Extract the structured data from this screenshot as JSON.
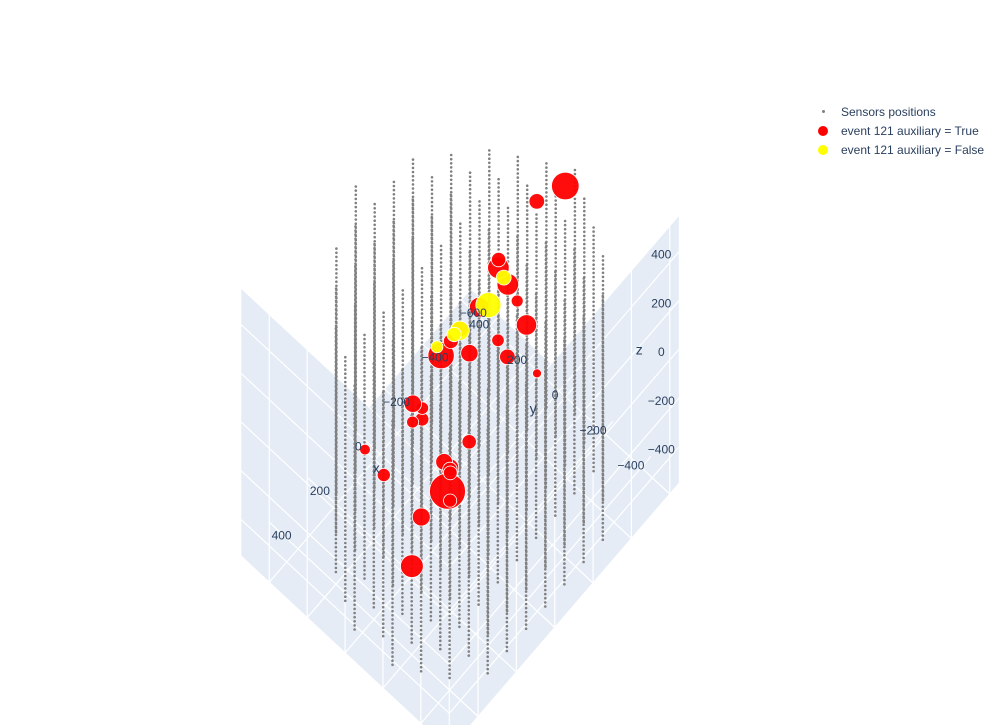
{
  "chart_data": {
    "type": "scatter3d",
    "axes": {
      "x": {
        "title": "x",
        "ticks": [
          "−600",
          "−400",
          "−200",
          "0",
          "200",
          "400"
        ],
        "tick_values": [
          -600,
          -400,
          -200,
          0,
          200,
          400
        ],
        "range": [
          -650,
          550
        ]
      },
      "y": {
        "title": "y",
        "ticks": [
          "−400",
          "−200",
          "0",
          "200",
          "400"
        ],
        "tick_values": [
          -400,
          -200,
          0,
          200,
          400
        ],
        "range": [
          -550,
          550
        ]
      },
      "z": {
        "title": "z",
        "ticks": [
          "−400",
          "−200",
          "0",
          "200",
          "400"
        ],
        "tick_values": [
          -400,
          -200,
          0,
          200,
          400
        ],
        "range": [
          -550,
          550
        ]
      }
    },
    "background_color": "#e5ecf6",
    "grid": true,
    "legend_placement": "top-right",
    "series": [
      {
        "name": "Sensors positions",
        "color": "#808080",
        "marker": "small-dot",
        "strings_xy": [
          [
            -300,
            -500
          ],
          [
            -200,
            -500
          ],
          [
            -100,
            -500
          ],
          [
            0,
            -500
          ],
          [
            100,
            -500
          ],
          [
            200,
            -500
          ],
          [
            300,
            -500
          ],
          [
            -400,
            -400
          ],
          [
            -300,
            -400
          ],
          [
            -200,
            -400
          ],
          [
            -100,
            -400
          ],
          [
            0,
            -400
          ],
          [
            100,
            -400
          ],
          [
            200,
            -400
          ],
          [
            300,
            -400
          ],
          [
            400,
            -400
          ],
          [
            -450,
            -300
          ],
          [
            -350,
            -300
          ],
          [
            -250,
            -300
          ],
          [
            -150,
            -300
          ],
          [
            -50,
            -300
          ],
          [
            50,
            -300
          ],
          [
            150,
            -300
          ],
          [
            250,
            -300
          ],
          [
            350,
            -300
          ],
          [
            450,
            -300
          ],
          [
            -500,
            -200
          ],
          [
            -400,
            -200
          ],
          [
            -300,
            -200
          ],
          [
            -200,
            -200
          ],
          [
            -100,
            -200
          ],
          [
            0,
            -200
          ],
          [
            100,
            -200
          ],
          [
            200,
            -200
          ],
          [
            300,
            -200
          ],
          [
            400,
            -200
          ],
          [
            500,
            -200
          ],
          [
            -550,
            -100
          ],
          [
            -450,
            -100
          ],
          [
            -350,
            -100
          ],
          [
            -250,
            -100
          ],
          [
            -150,
            -100
          ],
          [
            -50,
            -100
          ],
          [
            50,
            -100
          ],
          [
            150,
            -100
          ],
          [
            250,
            -100
          ],
          [
            350,
            -100
          ],
          [
            450,
            -100
          ],
          [
            -500,
            0
          ],
          [
            -400,
            0
          ],
          [
            -300,
            0
          ],
          [
            -200,
            0
          ],
          [
            -100,
            0
          ],
          [
            0,
            0
          ],
          [
            100,
            0
          ],
          [
            200,
            0
          ],
          [
            300,
            0
          ],
          [
            400,
            0
          ],
          [
            500,
            0
          ],
          [
            -450,
            100
          ],
          [
            -350,
            100
          ],
          [
            -250,
            100
          ],
          [
            -150,
            100
          ],
          [
            -50,
            100
          ],
          [
            50,
            100
          ],
          [
            150,
            100
          ],
          [
            250,
            100
          ],
          [
            350,
            100
          ],
          [
            450,
            100
          ],
          [
            -400,
            200
          ],
          [
            -300,
            200
          ],
          [
            -200,
            200
          ],
          [
            -100,
            200
          ],
          [
            0,
            200
          ],
          [
            100,
            200
          ],
          [
            200,
            200
          ],
          [
            300,
            200
          ],
          [
            400,
            200
          ],
          [
            -300,
            300
          ],
          [
            -200,
            300
          ],
          [
            -100,
            300
          ],
          [
            0,
            300
          ],
          [
            100,
            300
          ],
          [
            200,
            300
          ],
          [
            300,
            300
          ],
          [
            -200,
            400
          ],
          [
            -100,
            400
          ],
          [
            0,
            400
          ],
          [
            100,
            400
          ],
          [
            200,
            400
          ],
          [
            0,
            500
          ]
        ],
        "z_range": [
          -500,
          500
        ],
        "sensors_per_string": 60
      },
      {
        "name": "event 121 auxiliary = True",
        "color": "#ff0000",
        "points": [
          {
            "x": 480,
            "y": -470,
            "z": 390,
            "charge": 5.0
          },
          {
            "x": 380,
            "y": -380,
            "z": 330,
            "charge": 2.0
          },
          {
            "x": 330,
            "y": -300,
            "z": 250,
            "charge": 1.8
          },
          {
            "x": 250,
            "y": -250,
            "z": 110,
            "charge": 1.4
          },
          {
            "x": 350,
            "y": -200,
            "z": -30,
            "charge": 2.0
          },
          {
            "x": 200,
            "y": -200,
            "z": -100,
            "charge": 1.2
          },
          {
            "x": 300,
            "y": -100,
            "z": -350,
            "charge": 2.8
          },
          {
            "x": 100,
            "y": -200,
            "z": 50,
            "charge": 1.4
          },
          {
            "x": 100,
            "y": -100,
            "z": -150,
            "charge": 1.3
          },
          {
            "x": 0,
            "y": -300,
            "z": 380,
            "charge": 1.6
          },
          {
            "x": -50,
            "y": -200,
            "z": 330,
            "charge": 1.1
          },
          {
            "x": 0,
            "y": -100,
            "z": 250,
            "charge": 1.9
          },
          {
            "x": -100,
            "y": -300,
            "z": 420,
            "charge": 2.4
          },
          {
            "x": -150,
            "y": -200,
            "z": 400,
            "charge": 1.0
          },
          {
            "x": -200,
            "y": -100,
            "z": 350,
            "charge": 2.6
          },
          {
            "x": -250,
            "y": 0,
            "z": 300,
            "charge": 2.6
          },
          {
            "x": -150,
            "y": 0,
            "z": 230,
            "charge": 2.3
          },
          {
            "x": -100,
            "y": 50,
            "z": 150,
            "charge": 1.7
          },
          {
            "x": -50,
            "y": 100,
            "z": 50,
            "charge": 3.4
          },
          {
            "x": -500,
            "y": -100,
            "z": 480,
            "charge": 3.6
          },
          {
            "x": -450,
            "y": 0,
            "z": 390,
            "charge": 1.6
          },
          {
            "x": -350,
            "y": 100,
            "z": 170,
            "charge": 1.4
          },
          {
            "x": 50,
            "y": 100,
            "z": -120,
            "charge": 1.3
          },
          {
            "x": 0,
            "y": 200,
            "z": -250,
            "charge": 1.0
          },
          {
            "x": 150,
            "y": 200,
            "z": -330,
            "charge": 1.2
          },
          {
            "x": -100,
            "y": 250,
            "z": -320,
            "charge": 1.1
          },
          {
            "x": -150,
            "y": 350,
            "z": -420,
            "charge": 1.9
          },
          {
            "x": 100,
            "y": 350,
            "z": -380,
            "charge": 0.8
          },
          {
            "x": -550,
            "y": 100,
            "z": -480,
            "charge": 0.5
          },
          {
            "x": -200,
            "y": 200,
            "z": -100,
            "charge": 1.5
          }
        ]
      },
      {
        "name": "event 121 auxiliary = False",
        "color": "#ffff00",
        "points": [
          {
            "x": 0,
            "y": -200,
            "z": 520,
            "charge": 3.2
          },
          {
            "x": -80,
            "y": -200,
            "z": 560,
            "charge": 1.5
          },
          {
            "x": 100,
            "y": -150,
            "z": 470,
            "charge": 2.2
          },
          {
            "x": 80,
            "y": -100,
            "z": 400,
            "charge": 1.4
          },
          {
            "x": 120,
            "y": -50,
            "z": 350,
            "charge": 1.0
          }
        ]
      }
    ]
  }
}
